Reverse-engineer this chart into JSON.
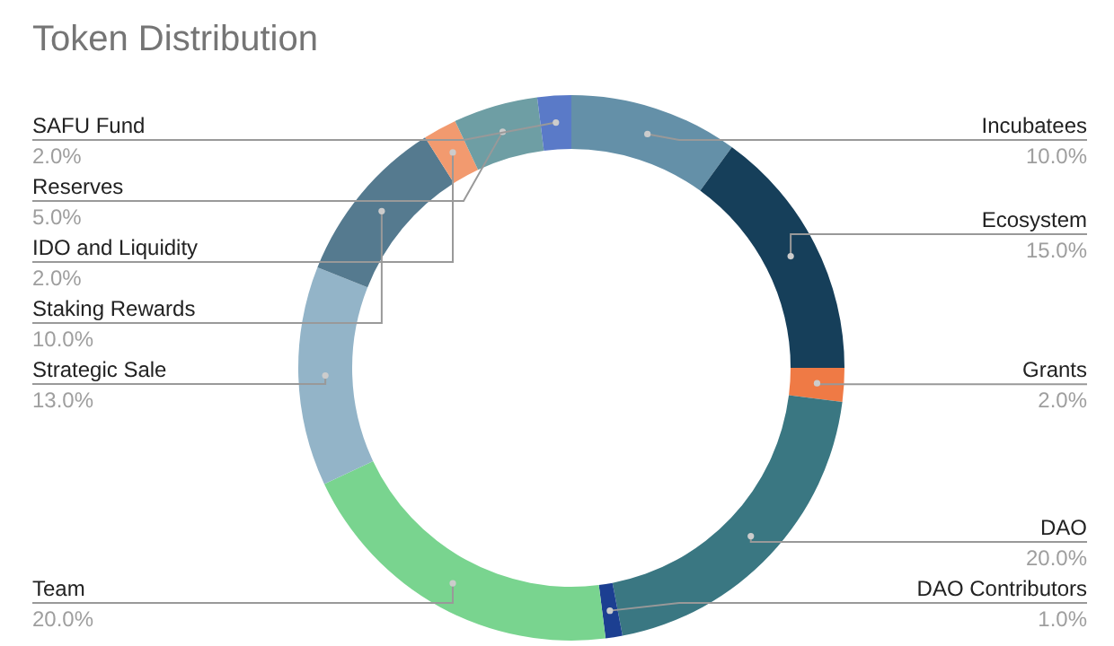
{
  "chart_data": {
    "type": "donut",
    "title": "Token Distribution",
    "categories": [
      "Incubatees",
      "Ecosystem",
      "Grants",
      "DAO",
      "DAO Contributors",
      "Team",
      "Strategic Sale",
      "Staking Rewards",
      "IDO and Liquidity",
      "Reserves",
      "SAFU Fund"
    ],
    "values": [
      10,
      15,
      2,
      20,
      1,
      20,
      13,
      10,
      2,
      5,
      2
    ],
    "value_labels": [
      "10.0%",
      "15.0%",
      "2.0%",
      "20.0%",
      "1.0%",
      "20.0%",
      "13.0%",
      "10.0%",
      "2.0%",
      "5.0%",
      "2.0%"
    ],
    "colors": [
      "#6490a8",
      "#163f5a",
      "#ef7a45",
      "#3a7782",
      "#1c3f91",
      "#79d48f",
      "#93b4c8",
      "#557a8f",
      "#f29a6f",
      "#6e9ea4",
      "#5a7ac8"
    ],
    "legend": false
  }
}
